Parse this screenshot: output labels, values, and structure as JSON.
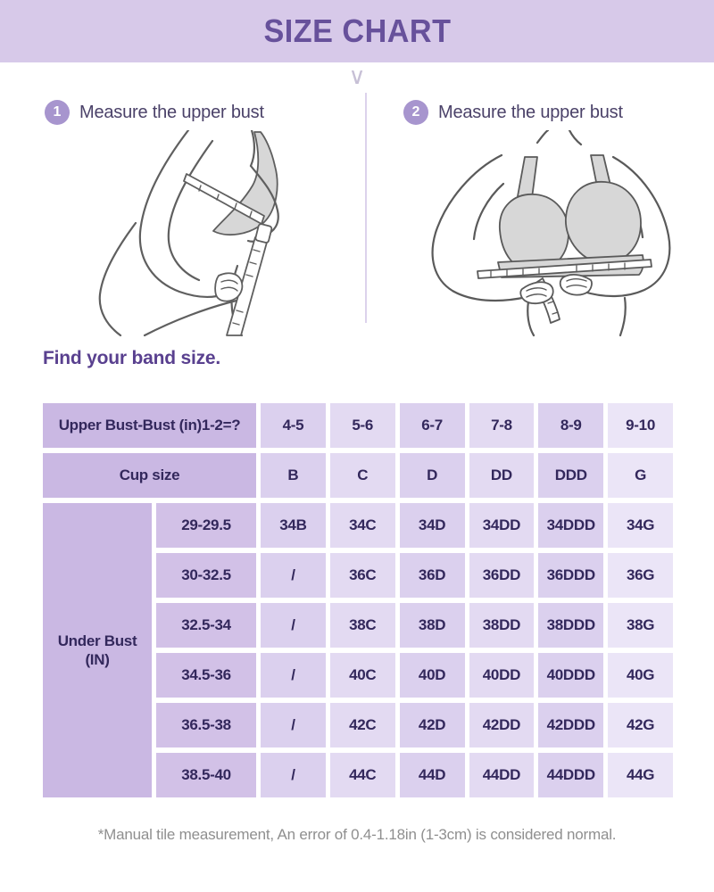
{
  "header": {
    "title": "SIZE CHART"
  },
  "icons": {
    "chevron_down": "∨"
  },
  "steps": [
    {
      "number": "1",
      "label": "Measure the upper bust"
    },
    {
      "number": "2",
      "label": "Measure the upper bust"
    }
  ],
  "illustrations": [
    {
      "name": "measure-upper-bust-side-view"
    },
    {
      "name": "measure-under-bust-front-view"
    }
  ],
  "section_title": "Find your band size.",
  "table": {
    "corner_header": "Upper Bust-Bust (in)1-2=?",
    "diff_values": [
      "4-5",
      "5-6",
      "6-7",
      "7-8",
      "8-9",
      "9-10"
    ],
    "cup_row_label": "Cup size",
    "cup_values": [
      "B",
      "C",
      "D",
      "DD",
      "DDD",
      "G"
    ],
    "row_header": "Under Bust\n(IN)",
    "rows": [
      {
        "range": "29-29.5",
        "sizes": [
          "34B",
          "34C",
          "34D",
          "34DD",
          "34DDD",
          "34G"
        ]
      },
      {
        "range": "30-32.5",
        "sizes": [
          "/",
          "36C",
          "36D",
          "36DD",
          "36DDD",
          "36G"
        ]
      },
      {
        "range": "32.5-34",
        "sizes": [
          "/",
          "38C",
          "38D",
          "38DD",
          "38DDD",
          "38G"
        ]
      },
      {
        "range": "34.5-36",
        "sizes": [
          "/",
          "40C",
          "40D",
          "40DD",
          "40DDD",
          "40G"
        ]
      },
      {
        "range": "36.5-38",
        "sizes": [
          "/",
          "42C",
          "42D",
          "42DD",
          "42DDD",
          "42G"
        ]
      },
      {
        "range": "38.5-40",
        "sizes": [
          "/",
          "44C",
          "44D",
          "44DD",
          "44DDD",
          "44G"
        ]
      }
    ]
  },
  "footnote": "*Manual tile measurement, An error of 0.4-1.18in (1-3cm) is considered normal.",
  "colors": {
    "banner_bg": "#d7c9e9",
    "title_text": "#67519b",
    "step_badge": "#a795ce",
    "step_text": "#4b4269",
    "section_title_text": "#59408f",
    "table_header_cell": "#cab8e3",
    "table_range_cell": "#d2c1e7",
    "table_cell_dark": "#dbd0ee",
    "table_cell_mid": "#e3daf2",
    "table_cell_light": "#ebe5f7",
    "table_text": "#33285c",
    "footnote_text": "#8f8f8f",
    "illustration_line": "#5f5f5f",
    "illustration_fill": "#d7d7d7"
  }
}
